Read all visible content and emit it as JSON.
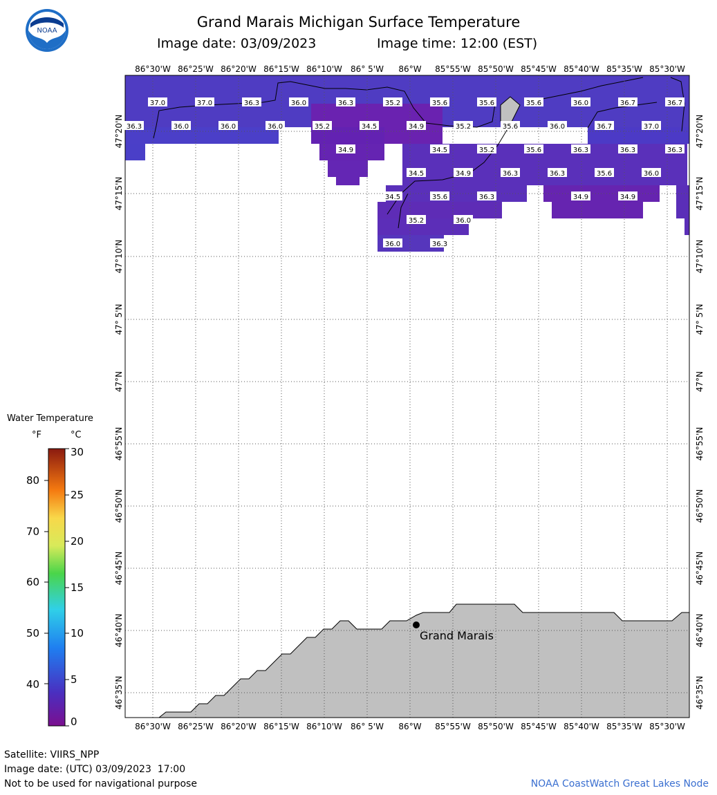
{
  "header": {
    "title": "Grand Marais Michigan Surface Temperature",
    "image_date": "Image date: 03/09/2023",
    "image_time": "Image time: 12:00 (EST)"
  },
  "logo": {
    "text": "NOAA"
  },
  "legend": {
    "title": "Water Temperature",
    "unit_f": "°F",
    "unit_c": "°C",
    "f_ticks": [
      "40",
      "50",
      "60",
      "70",
      "80"
    ],
    "c_ticks": [
      "0",
      "5",
      "10",
      "15",
      "20",
      "25",
      "30"
    ]
  },
  "map": {
    "lon_labels": [
      "86°30'W",
      "86°25'W",
      "86°20'W",
      "86°15'W",
      "86°10'W",
      "86° 5'W",
      "86°W",
      "85°55'W",
      "85°50'W",
      "85°45'W",
      "85°40'W",
      "85°35'W",
      "85°30'W"
    ],
    "lat_labels": [
      "47°20'N",
      "47°15'N",
      "47°10'N",
      "47° 5'N",
      "47°N",
      "46°55'N",
      "46°50'N",
      "46°45'N",
      "46°40'N",
      "46°35'N"
    ],
    "place": "Grand Marais",
    "temps": [
      [
        "37.0",
        "36.3"
      ],
      [
        "37.0",
        "36.0"
      ],
      [
        "36.3",
        "36.0"
      ],
      [
        "36.0",
        "36.0"
      ],
      [
        "36.3",
        "35.2"
      ],
      [
        "35.2",
        "34.5"
      ],
      [
        "35.6",
        "34.9"
      ],
      [
        "35.6",
        "35.2"
      ],
      [
        "35.6",
        "35.6"
      ],
      [
        "36.0",
        "36.0"
      ],
      [
        "36.7",
        "36.7"
      ],
      [
        "36.7",
        "37.0"
      ],
      [
        "34.9",
        "34.5",
        "35.2",
        "35.6",
        "36.3",
        "36.3",
        "36.3"
      ],
      [
        "34.5",
        "34.9",
        "36.3",
        "36.3",
        "35.6",
        "36.0"
      ],
      [
        "34.5",
        "35.6",
        "36.3",
        "34.9",
        "34.9"
      ],
      [
        "35.2",
        "36.0"
      ],
      [
        "36.0",
        "36.3"
      ]
    ]
  },
  "footer": {
    "satellite": "Satellite: VIIRS_NPP",
    "utc_date": "Image date: (UTC) 03/09/2023  17:00",
    "disclaimer": "Not to be used for navigational purpose",
    "credit": "NOAA CoastWatch Great Lakes Node"
  },
  "colors": {
    "water": "#5a2fb8",
    "land": "#c0c0c0",
    "credit": "#3a6fd0"
  }
}
